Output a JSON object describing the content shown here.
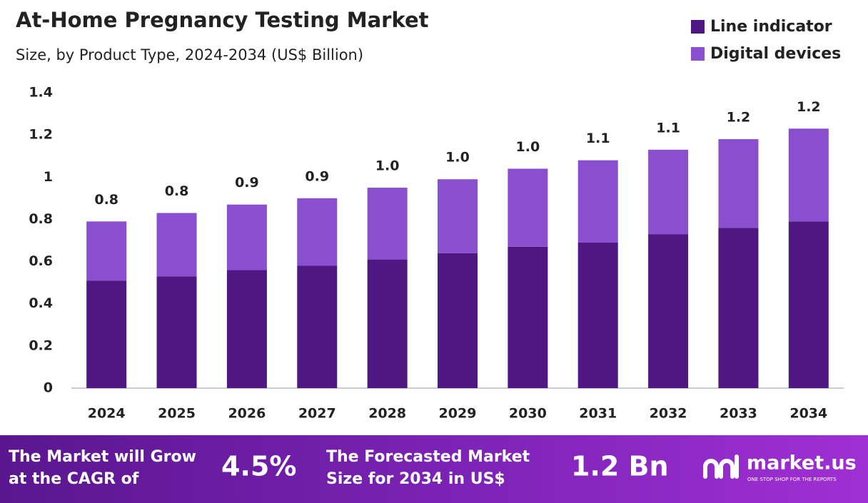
{
  "chart_data": {
    "type": "stacked_bar",
    "title": "At-Home Pregnancy Testing Market",
    "subtitle": "Size, by Product Type, 2024-2034 (US$ Billion)",
    "categories": [
      "2024",
      "2025",
      "2026",
      "2027",
      "2028",
      "2029",
      "2030",
      "2031",
      "2032",
      "2033",
      "2034"
    ],
    "series": [
      {
        "name": "Line indicator",
        "color": "#4e1782",
        "values": [
          0.51,
          0.53,
          0.56,
          0.58,
          0.61,
          0.64,
          0.67,
          0.69,
          0.73,
          0.76,
          0.79
        ]
      },
      {
        "name": "Digital devices",
        "color": "#8a4fcf",
        "values": [
          0.28,
          0.3,
          0.31,
          0.32,
          0.34,
          0.35,
          0.37,
          0.39,
          0.4,
          0.42,
          0.44
        ]
      }
    ],
    "total_labels": [
      "0.8",
      "0.8",
      "0.9",
      "0.9",
      "1.0",
      "1.0",
      "1.0",
      "1.1",
      "1.1",
      "1.2",
      "1.2"
    ],
    "ylim": [
      0,
      1.4
    ],
    "yticks": [
      0,
      0.2,
      0.4,
      0.6,
      0.8,
      1,
      1.2,
      1.4
    ],
    "grid": false,
    "legend": "top-right"
  },
  "footer": {
    "cagr_text": [
      "The Market will Grow",
      "at the CAGR of"
    ],
    "cagr_value": "4.5%",
    "forecast_text": [
      "The Forecasted Market",
      "Size for 2034 in US$"
    ],
    "forecast_value": "1.2 Bn",
    "brand": "market.us",
    "tagline": "ONE STOP SHOP FOR THE REPORTS"
  }
}
